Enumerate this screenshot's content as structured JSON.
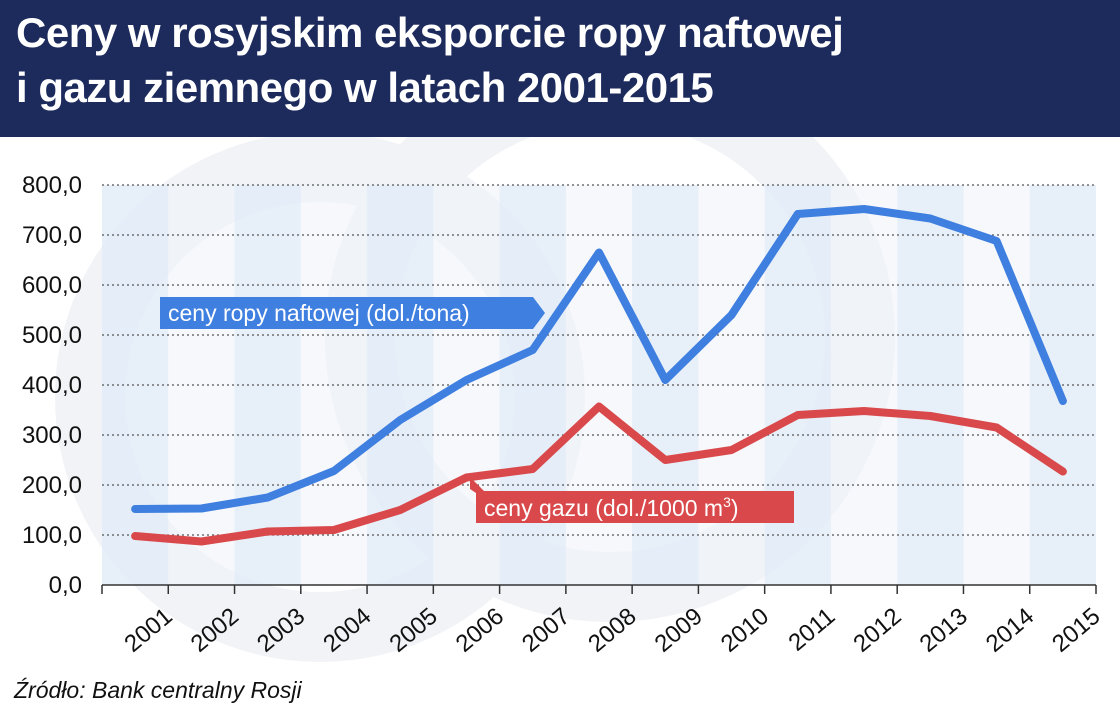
{
  "title": {
    "line1": "Ceny w rosyjskim eksporcie ropy naftowej",
    "line2": "i gazu ziemnego w latach 2001-2015"
  },
  "source": "Źródło: Bank centralny Rosji",
  "colors": {
    "header_bg": "#1c2a5c",
    "oil": "#3e7fe0",
    "gas": "#d9494b",
    "band_a": "#e3ecf8",
    "band_b": "#eef3fa"
  },
  "chart_data": {
    "type": "line",
    "x": [
      "2001",
      "2002",
      "2003",
      "2004",
      "2005",
      "2006",
      "2007",
      "2008",
      "2009",
      "2010",
      "2011",
      "2012",
      "2013",
      "2014",
      "2015"
    ],
    "ylim": [
      0,
      800
    ],
    "yticks": [
      "0,0",
      "100,0",
      "200,0",
      "300,0",
      "400,0",
      "500,0",
      "600,0",
      "700,0",
      "800,0"
    ],
    "grid": true,
    "series": [
      {
        "name": "ceny ropy naftowej (dol./tona)",
        "color": "#3e7fe0",
        "values": [
          152,
          153,
          175,
          228,
          330,
          410,
          470,
          665,
          410,
          540,
          742,
          752,
          733,
          688,
          368
        ]
      },
      {
        "name": "ceny gazu (dol./1000 m",
        "name_sup": "3",
        "name_suffix": ")",
        "color": "#d9494b",
        "values": [
          98,
          87,
          107,
          110,
          150,
          215,
          232,
          357,
          250,
          270,
          340,
          348,
          338,
          315,
          227
        ]
      }
    ]
  }
}
